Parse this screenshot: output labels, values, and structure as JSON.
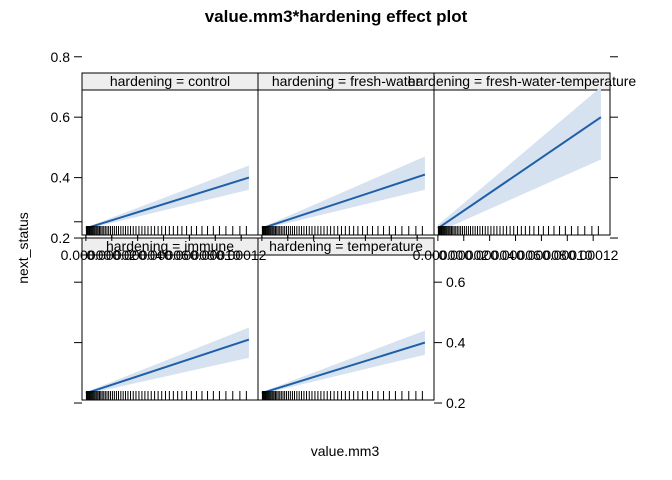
{
  "chart_data": {
    "type": "line",
    "title": "value.mm3*hardening effect plot",
    "xlabel": "value.mm3",
    "ylabel": "next_status",
    "x_tick_labels": [
      "0.00000",
      "0.00002",
      "0.00004",
      "0.00006",
      "0.00008",
      "0.00010",
      "0.00012"
    ],
    "x_ticks": [
      0,
      2e-05,
      4e-05,
      6e-05,
      8e-05,
      0.0001,
      0.00012
    ],
    "y_tick_labels": [
      "0.2",
      "0.4",
      "0.6",
      "0.8"
    ],
    "y_ticks": [
      0.2,
      0.4,
      0.6,
      0.8
    ],
    "xlim": [
      -3e-06,
      0.000133
    ],
    "ylim": [
      0.21,
      0.69
    ],
    "grid": false,
    "legend": "none",
    "line_color": "#1f5fa8",
    "band_color": "#d6e2f0",
    "panels": [
      {
        "label": "hardening = immune",
        "x": [
          0,
          0.000126
        ],
        "fit": [
          0.232,
          0.41
        ],
        "lower": [
          0.229,
          0.35
        ],
        "upper": [
          0.236,
          0.45
        ]
      },
      {
        "label": "hardening = temperature",
        "x": [
          0,
          0.000126
        ],
        "fit": [
          0.233,
          0.4
        ],
        "lower": [
          0.23,
          0.36
        ],
        "upper": [
          0.236,
          0.44
        ]
      },
      {
        "label": "hardening = control",
        "x": [
          0,
          0.000126
        ],
        "fit": [
          0.232,
          0.4
        ],
        "lower": [
          0.229,
          0.36
        ],
        "upper": [
          0.235,
          0.44
        ]
      },
      {
        "label": "hardening = fresh-water",
        "x": [
          0,
          0.000126
        ],
        "fit": [
          0.232,
          0.41
        ],
        "lower": [
          0.229,
          0.36
        ],
        "upper": [
          0.235,
          0.47
        ]
      },
      {
        "label": "hardening = fresh-water-temperature",
        "x": [
          0,
          0.000126
        ],
        "fit": [
          0.232,
          0.6
        ],
        "lower": [
          0.22,
          0.46
        ],
        "upper": [
          0.243,
          0.7
        ]
      }
    ],
    "rug_x": [
      4e-07,
      9e-07,
      1.4e-06,
      1.9e-06,
      2.5e-06,
      3.1e-06,
      3.8e-06,
      4.5e-06,
      5.2e-06,
      6e-06,
      6.8e-06,
      7.7e-06,
      8.6e-06,
      9.5e-06,
      1.05e-05,
      1.15e-05,
      1.26e-05,
      1.38e-05,
      1.5e-05,
      1.63e-05,
      1.76e-05,
      1.9e-05,
      2.05e-05,
      2.2e-05,
      2.36e-05,
      2.52e-05,
      2.7e-05,
      2.88e-05,
      3.06e-05,
      3.25e-05,
      3.45e-05,
      3.66e-05,
      3.87e-05,
      4.1e-05,
      4.33e-05,
      4.56e-05,
      4.8e-05,
      5.05e-05,
      5.31e-05,
      5.58e-05,
      5.86e-05,
      6.15e-05,
      6.45e-05,
      6.76e-05,
      7.09e-05,
      7.42e-05,
      7.78e-05,
      8.15e-05,
      8.55e-05,
      8.97e-05,
      9.4e-05,
      9.85e-05,
      0.0001032,
      0.0001082,
      0.0001135,
      0.000119,
      0.000124
    ]
  }
}
